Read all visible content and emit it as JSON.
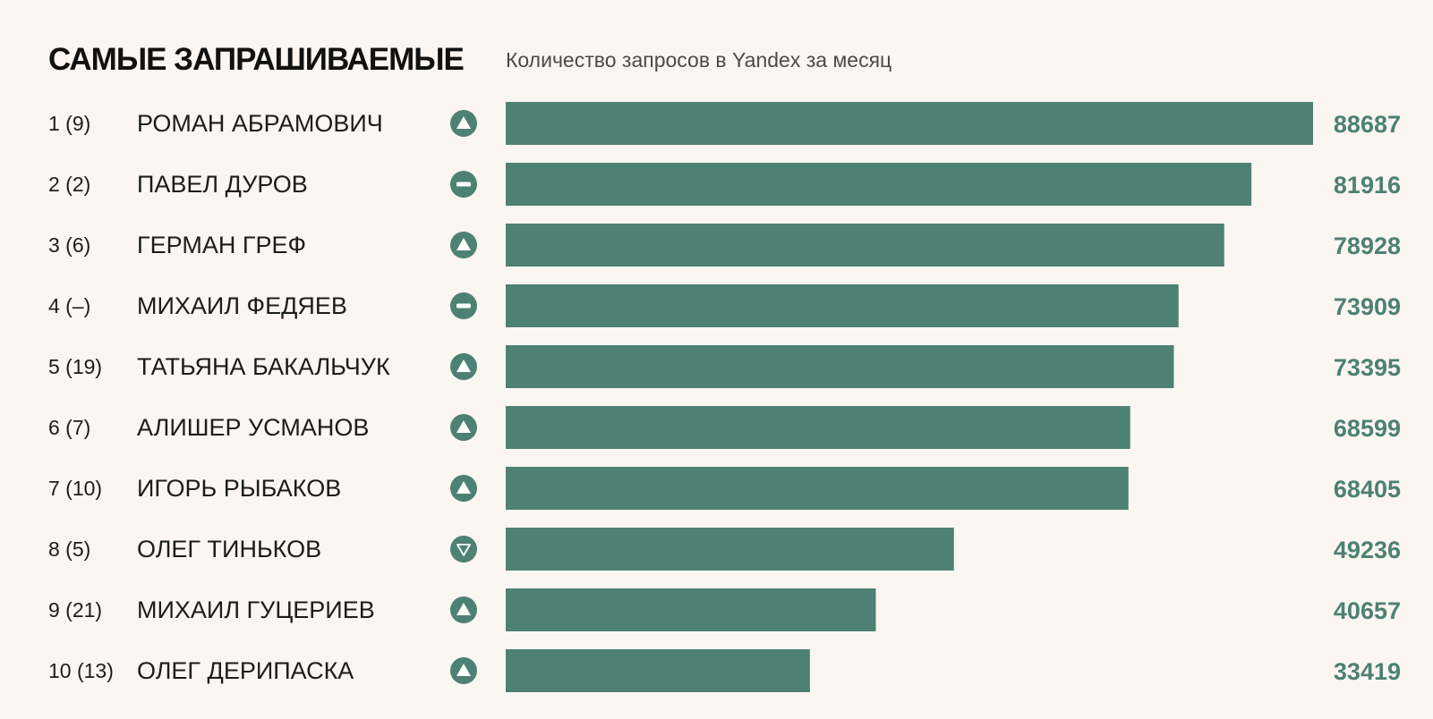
{
  "header": {
    "title": "САМЫЕ ЗАПРАШИВАЕМЫЕ",
    "subtitle": "Количество запросов в Yandex за месяц"
  },
  "colors": {
    "bar": "#4d8174",
    "icon": "#4d8174",
    "value_text": "#4d8174",
    "background": "#fbf6f2"
  },
  "chart_data": {
    "type": "bar",
    "orientation": "horizontal",
    "title": "САМЫЕ ЗАПРАШИВАЕМЫЕ",
    "subtitle": "Количество запросов в Yandex за месяц",
    "xlim": [
      0,
      88687
    ],
    "grid": false,
    "rows": [
      {
        "rank": "1 (9)",
        "name": "РОМАН АБРАМОВИЧ",
        "trend": "up-icon",
        "value": 88687
      },
      {
        "rank": "2 (2)",
        "name": "ПАВЕЛ ДУРОВ",
        "trend": "minus-icon",
        "value": 81916
      },
      {
        "rank": "3 (6)",
        "name": "ГЕРМАН ГРЕФ",
        "trend": "up-icon",
        "value": 78928
      },
      {
        "rank": "4 (–)",
        "name": "МИХАИЛ ФЕДЯЕВ",
        "trend": "minus-icon",
        "value": 73909
      },
      {
        "rank": "5 (19)",
        "name": "ТАТЬЯНА БАКАЛЬЧУК",
        "trend": "up-icon",
        "value": 73395
      },
      {
        "rank": "6 (7)",
        "name": "АЛИШЕР УСМАНОВ",
        "trend": "up-icon",
        "value": 68599
      },
      {
        "rank": "7 (10)",
        "name": "ИГОРЬ РЫБАКОВ",
        "trend": "up-icon",
        "value": 68405
      },
      {
        "rank": "8 (5)",
        "name": "ОЛЕГ ТИНЬКОВ",
        "trend": "down-icon",
        "value": 49236
      },
      {
        "rank": "9 (21)",
        "name": "МИХАИЛ ГУЦЕРИЕВ",
        "trend": "up-icon",
        "value": 40657
      },
      {
        "rank": "10 (13)",
        "name": "ОЛЕГ ДЕРИПАСКА",
        "trend": "up-icon",
        "value": 33419
      }
    ]
  }
}
